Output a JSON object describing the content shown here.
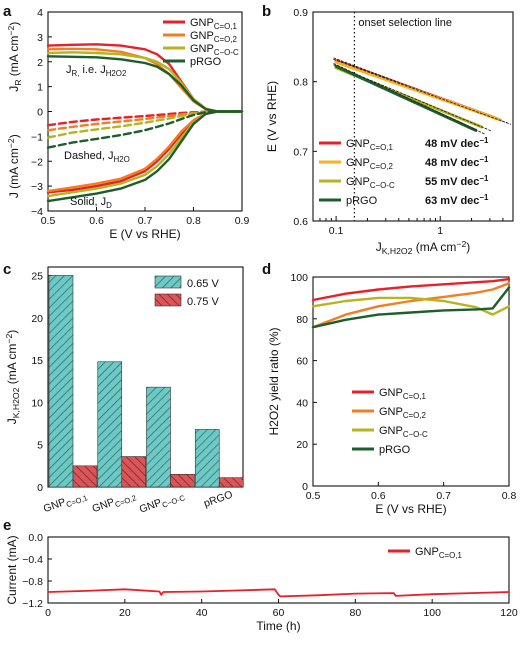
{
  "chart_data": [
    {
      "panel": "a",
      "type": "line",
      "xlabel": "E (V vs RHE)",
      "ylabel_top": "J_R (mA cm^-2)",
      "ylabel_bottom": "J (mA cm^-2)",
      "xlim": [
        0.5,
        0.9
      ],
      "ylim": [
        -4,
        4
      ],
      "xticks": [
        "0.5",
        "0.6",
        "0.7",
        "0.8",
        "0.9"
      ],
      "yticks": [
        "-4",
        "-3",
        "-2",
        "-1",
        "0",
        "1",
        "2",
        "3",
        "4"
      ],
      "annotations": {
        "top": "J_R, i.e. J_H2O2",
        "dashed": "Dashed, J_H2O",
        "solid": "Solid, J_D"
      },
      "x": [
        0.5,
        0.55,
        0.6,
        0.65,
        0.7,
        0.725,
        0.75,
        0.775,
        0.8,
        0.825,
        0.85,
        0.9
      ],
      "series": [
        {
          "name": "GNP_C=O,1",
          "color": "#e8202a",
          "ring": [
            2.65,
            2.68,
            2.7,
            2.65,
            2.5,
            2.3,
            1.9,
            1.2,
            0.5,
            0.1,
            0.0,
            0.0
          ],
          "disk": [
            -3.25,
            -3.15,
            -3.0,
            -2.8,
            -2.4,
            -2.0,
            -1.5,
            -0.9,
            -0.4,
            -0.1,
            0.0,
            0.0
          ],
          "h2o": [
            -0.55,
            -0.42,
            -0.32,
            -0.25,
            -0.18,
            -0.14,
            -0.1,
            -0.06,
            -0.03,
            -0.01,
            0.0,
            0.0
          ]
        },
        {
          "name": "GNP_C=O,2",
          "color": "#f07f24",
          "ring": [
            2.5,
            2.52,
            2.5,
            2.4,
            2.15,
            1.9,
            1.5,
            0.95,
            0.4,
            0.1,
            0.0,
            0.0
          ],
          "disk": [
            -3.2,
            -3.05,
            -2.9,
            -2.7,
            -2.3,
            -1.9,
            -1.4,
            -0.8,
            -0.35,
            -0.08,
            0.0,
            0.0
          ],
          "h2o": [
            -0.75,
            -0.62,
            -0.5,
            -0.4,
            -0.3,
            -0.24,
            -0.18,
            -0.12,
            -0.06,
            -0.02,
            0.0,
            0.0
          ]
        },
        {
          "name": "GNP_C-O-C",
          "color": "#b5b51f",
          "ring": [
            2.35,
            2.38,
            2.35,
            2.3,
            2.15,
            2.0,
            1.7,
            1.15,
            0.5,
            0.12,
            0.0,
            0.0
          ],
          "disk": [
            -3.4,
            -3.25,
            -3.1,
            -2.9,
            -2.55,
            -2.2,
            -1.7,
            -1.05,
            -0.45,
            -0.1,
            0.0,
            0.0
          ],
          "h2o": [
            -1.05,
            -0.85,
            -0.72,
            -0.6,
            -0.45,
            -0.36,
            -0.28,
            -0.18,
            -0.09,
            -0.02,
            0.0,
            0.0
          ]
        },
        {
          "name": "pRGO",
          "color": "#1e5e2e",
          "ring": [
            2.22,
            2.2,
            2.18,
            2.1,
            1.95,
            1.8,
            1.5,
            1.05,
            0.45,
            0.1,
            0.0,
            0.0
          ],
          "disk": [
            -3.6,
            -3.45,
            -3.3,
            -3.1,
            -2.75,
            -2.4,
            -1.9,
            -1.2,
            -0.5,
            -0.1,
            0.0,
            0.0
          ],
          "h2o": [
            -1.45,
            -1.25,
            -1.1,
            -0.95,
            -0.75,
            -0.62,
            -0.48,
            -0.3,
            -0.14,
            -0.03,
            0.0,
            0.0
          ]
        }
      ]
    },
    {
      "panel": "b",
      "type": "line",
      "xlabel": "J_K,H2O2 (mA cm^-2)",
      "ylabel": "E (V vs RHE)",
      "xscale": "log",
      "xlim": [
        0.06,
        5
      ],
      "ylim": [
        0.6,
        0.9
      ],
      "yticks": [
        "0.6",
        "0.7",
        "0.8",
        "0.9"
      ],
      "xticks": [
        "0.1",
        "1"
      ],
      "annotation": "onset selection line",
      "onset_x": 0.15,
      "series": [
        {
          "name": "GNP_C=O,1",
          "tafel": "48 mV dec^-1",
          "color": "#e8202a",
          "x": [
            0.1,
            3.5
          ],
          "y": [
            0.83,
            0.747
          ]
        },
        {
          "name": "GNP_C=O,2",
          "tafel": "48 mV dec^-1",
          "color": "#f5b321",
          "x": [
            0.1,
            3.8
          ],
          "y": [
            0.828,
            0.745
          ]
        },
        {
          "name": "GNP_C-O-C",
          "tafel": "55 mV dec^-1",
          "color": "#b5b51f",
          "x": [
            0.1,
            2.5
          ],
          "y": [
            0.82,
            0.735
          ]
        },
        {
          "name": "pRGO",
          "tafel": "63 mV dec^-1",
          "color": "#1e5e2e",
          "x": [
            0.1,
            2.2
          ],
          "y": [
            0.822,
            0.73
          ]
        }
      ]
    },
    {
      "panel": "c",
      "type": "bar",
      "ylabel": "J_K,H2O2 (mA cm^-2)",
      "ylim": [
        0,
        26
      ],
      "yticks": [
        "0",
        "5",
        "10",
        "15",
        "20",
        "25"
      ],
      "categories": [
        "GNP_C=O,1",
        "GNP_C=O,2",
        "GNP_C-O-C",
        "pRGO"
      ],
      "series": [
        {
          "name": "0.65 V",
          "color": "#6fc8c4",
          "values": [
            25.0,
            14.8,
            11.8,
            6.8
          ]
        },
        {
          "name": "0.75 V",
          "color": "#d9575a",
          "values": [
            2.5,
            3.6,
            1.5,
            1.1
          ]
        }
      ]
    },
    {
      "panel": "d",
      "type": "line",
      "xlabel": "E (V vs RHE)",
      "ylabel": "H2O2 yield ratio (%)",
      "xlim": [
        0.5,
        0.8
      ],
      "ylim": [
        0,
        100
      ],
      "xticks": [
        "0.5",
        "0.6",
        "0.7",
        "0.8"
      ],
      "yticks": [
        "0",
        "20",
        "40",
        "60",
        "80",
        "100"
      ],
      "x": [
        0.5,
        0.55,
        0.6,
        0.65,
        0.7,
        0.75,
        0.775,
        0.8
      ],
      "series": [
        {
          "name": "GNP_C=O,1",
          "color": "#e8202a",
          "values": [
            89,
            92,
            94,
            95.5,
            96.5,
            97.5,
            98,
            99
          ]
        },
        {
          "name": "GNP_C=O,2",
          "color": "#f07f24",
          "values": [
            76,
            82,
            86,
            88.5,
            90.5,
            92.5,
            94,
            97
          ]
        },
        {
          "name": "GNP_C-O-C",
          "color": "#b5b51f",
          "values": [
            86,
            88.5,
            90,
            90,
            88.5,
            85.5,
            82,
            86
          ]
        },
        {
          "name": "pRGO",
          "color": "#1e5e2e",
          "values": [
            76,
            79.5,
            82,
            83,
            84,
            84.5,
            85,
            95
          ]
        }
      ]
    },
    {
      "panel": "e",
      "type": "line",
      "xlabel": "Time (h)",
      "ylabel": "Current (mA)",
      "xlim": [
        0,
        120
      ],
      "ylim": [
        -1.2,
        0.0
      ],
      "xticks": [
        "0",
        "20",
        "40",
        "60",
        "80",
        "100",
        "120"
      ],
      "yticks": [
        "0.0",
        "-0.4",
        "-0.8",
        "-1.2"
      ],
      "series": [
        {
          "name": "GNP_C=O,1",
          "color": "#e8202a",
          "x": [
            0,
            10,
            20,
            29,
            29.5,
            30,
            40,
            50,
            59,
            60,
            60.5,
            70,
            80,
            90,
            90.5,
            100,
            110,
            120
          ],
          "values": [
            -1.0,
            -0.98,
            -0.95,
            -0.99,
            -1.05,
            -1.0,
            -0.99,
            -0.97,
            -0.95,
            -1.05,
            -1.08,
            -1.06,
            -1.03,
            -1.02,
            -1.07,
            -1.04,
            -1.02,
            -1.0
          ]
        }
      ]
    }
  ]
}
